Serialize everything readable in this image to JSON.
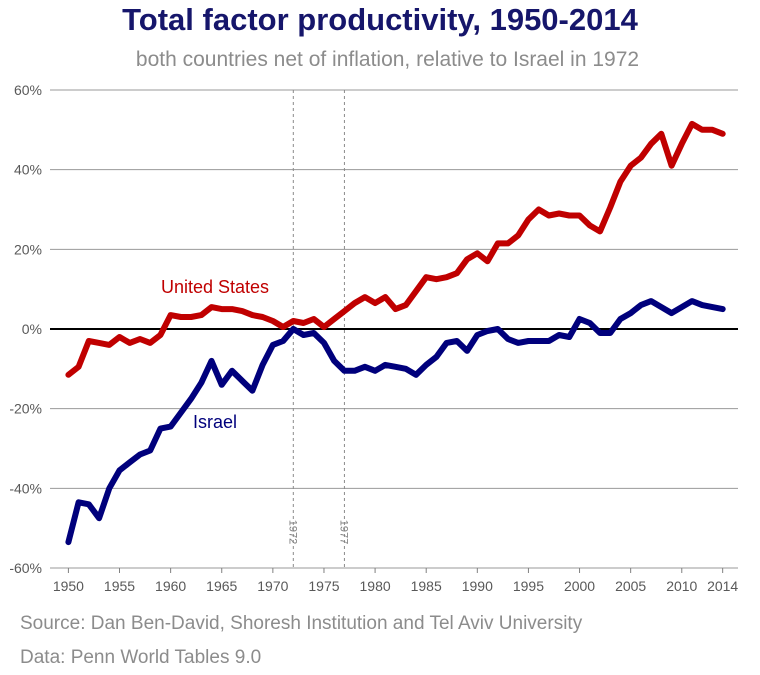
{
  "header": {
    "title": "Total factor productivity, 1950-2014",
    "subtitle": "both countries net of inflation, relative to Israel in 1972"
  },
  "footer": {
    "source": "Source: Dan Ben-David, Shoresh Institution and Tel Aviv University",
    "data_note": "Data: Penn World Tables 9.0"
  },
  "chart_data": {
    "type": "line",
    "title": "Total factor productivity, 1950-2014",
    "subtitle": "both countries net of inflation, relative to Israel in 1972",
    "xlabel": "",
    "ylabel": "",
    "xlim": [
      1948,
      2015
    ],
    "ylim": [
      -60,
      60
    ],
    "x_ticks": [
      1950,
      1955,
      1960,
      1965,
      1970,
      1975,
      1980,
      1985,
      1990,
      1995,
      2000,
      2005,
      2010,
      2014
    ],
    "y_ticks": [
      -60,
      -40,
      -20,
      0,
      20,
      40,
      60
    ],
    "y_tick_labels": [
      "-60%",
      "-40%",
      "-20%",
      "0%",
      "20%",
      "40%",
      "60%"
    ],
    "grid": true,
    "reference_lines": [
      {
        "x": 1972,
        "label": "1972"
      },
      {
        "x": 1977,
        "label": "1977"
      }
    ],
    "x": [
      1950,
      1951,
      1952,
      1953,
      1954,
      1955,
      1956,
      1957,
      1958,
      1959,
      1960,
      1961,
      1962,
      1963,
      1964,
      1965,
      1966,
      1967,
      1968,
      1969,
      1970,
      1971,
      1972,
      1973,
      1974,
      1975,
      1976,
      1977,
      1978,
      1979,
      1980,
      1981,
      1982,
      1983,
      1984,
      1985,
      1986,
      1987,
      1988,
      1989,
      1990,
      1991,
      1992,
      1993,
      1994,
      1995,
      1996,
      1997,
      1998,
      1999,
      2000,
      2001,
      2002,
      2003,
      2004,
      2005,
      2006,
      2007,
      2008,
      2009,
      2010,
      2011,
      2012,
      2013,
      2014
    ],
    "series": [
      {
        "name": "United States",
        "color": "#c00000",
        "values": [
          -11.5,
          -9.5,
          -3,
          -3.5,
          -4,
          -2,
          -3.5,
          -2.5,
          -3.5,
          -1.5,
          3.5,
          3,
          3,
          3.5,
          5.5,
          5,
          5,
          4.5,
          3.5,
          3,
          2,
          0.5,
          2,
          1.5,
          2.5,
          0.5,
          2.5,
          4.5,
          6.5,
          8,
          6.5,
          8,
          5,
          6,
          9.5,
          13,
          12.5,
          13,
          14,
          17.5,
          19,
          17,
          21.5,
          21.5,
          23.5,
          27.5,
          30,
          28.5,
          29,
          28.5,
          28.5,
          26,
          24.5,
          30.5,
          37,
          41,
          43,
          46.5,
          49,
          41,
          46.5,
          51.5,
          50,
          50,
          49
        ]
      },
      {
        "name": "Israel",
        "color": "#00007c",
        "values": [
          -53.5,
          -43.5,
          -44,
          -47.5,
          -40,
          -35.5,
          -33.5,
          -31.5,
          -30.5,
          -25,
          -24.5,
          -21,
          -17.5,
          -13.5,
          -8,
          -14,
          -10.5,
          -13,
          -15.5,
          -9,
          -4,
          -3,
          0,
          -1.5,
          -1,
          -3.5,
          -8,
          -10.5,
          -10.5,
          -9.5,
          -10.5,
          -9,
          -9.5,
          -10,
          -11.5,
          -9,
          -7,
          -3.5,
          -3,
          -5.5,
          -1.5,
          -0.5,
          0,
          -2.5,
          -3.5,
          -3,
          -3,
          -3,
          -1.5,
          -2,
          2.5,
          1.5,
          -1,
          -1,
          2.5,
          4,
          6,
          7,
          5.5,
          4,
          5.5,
          7,
          6,
          5.5,
          5
        ]
      }
    ]
  }
}
